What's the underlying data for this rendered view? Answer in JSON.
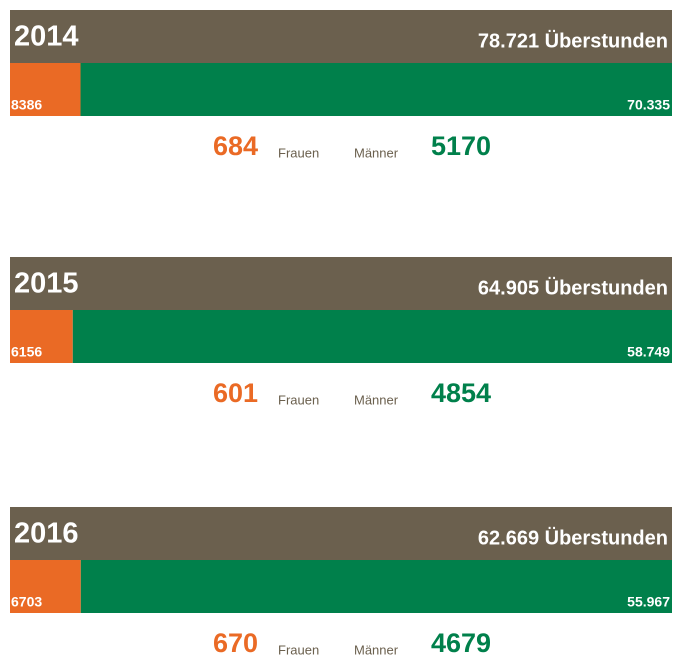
{
  "chart_data": [
    {
      "type": "bar",
      "title": "2014",
      "subtitle": "78.721 Überstunden",
      "series": [
        {
          "name": "Frauen",
          "color": "#ea6a25",
          "values": [
            8386
          ]
        },
        {
          "name": "Männer",
          "color": "#00804b",
          "values": [
            70335
          ],
          "value_labels": [
            "70.335"
          ]
        }
      ],
      "counts": [
        684,
        5170
      ]
    },
    {
      "type": "bar",
      "title": "2015",
      "subtitle": "64.905 Überstunden",
      "series": [
        {
          "name": "Frauen",
          "color": "#ea6a25",
          "values": [
            6156
          ]
        },
        {
          "name": "Männer",
          "color": "#00804b",
          "values": [
            58749
          ],
          "value_labels": [
            "58.749"
          ]
        }
      ],
      "counts": [
        601,
        4854
      ]
    },
    {
      "type": "bar",
      "title": "2016",
      "subtitle": "62.669 Überstunden",
      "series": [
        {
          "name": "Frauen",
          "color": "#ea6a25",
          "values": [
            6703
          ]
        },
        {
          "name": "Männer",
          "color": "#00804b",
          "values": [
            55967
          ],
          "value_labels": [
            "55.967"
          ]
        }
      ],
      "counts": [
        670,
        4679
      ]
    }
  ]
}
